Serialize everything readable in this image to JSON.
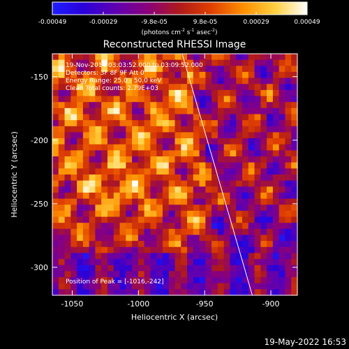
{
  "colorbar": {
    "ticks": [
      "-0.00049",
      "-0.00029",
      "-9.8e-05",
      "9.8e-05",
      "0.00029",
      "0.00049"
    ],
    "units": {
      "base": "(photons cm",
      "sup1": "-2",
      "mid1": " s",
      "sup2": "-1",
      "mid2": " asec",
      "sup3": "-2",
      "end": ")"
    },
    "range": [
      -0.00049,
      0.00049
    ],
    "colors": [
      "#1e1eff",
      "#2a00d8",
      "#6000b0",
      "#8a007a",
      "#b01a1a",
      "#e04000",
      "#ff9000",
      "#ffd040",
      "#ffffff"
    ]
  },
  "chart_data": {
    "type": "heatmap",
    "title": "Reconstructed RHESSI Image",
    "xlabel": "Heliocentric X (arcsec)",
    "ylabel": "Heliocentric Y (arcsec)",
    "xlim": [
      -1065,
      -880
    ],
    "ylim": [
      -322,
      -132
    ],
    "xticks": [
      "-1050",
      "-1000",
      "-950",
      "-900"
    ],
    "yticks": [
      "-150",
      "-200",
      "-250",
      "-300"
    ],
    "xtick_values": [
      -1050,
      -1000,
      -950,
      -900
    ],
    "ytick_values": [
      -150,
      -200,
      -250,
      -300
    ],
    "annotations": [
      "19-Nov-2014 03:03:52.000 to 03:09:52.000",
      "Detectors: 3F 8F 9F  Att 0",
      "Energy Range: 25.0 - 50.0 keV",
      "Clean     Total counts: 2.79E+03"
    ],
    "peak_label": "Position of Peak = [-1016,-242]",
    "peak": [
      -1016,
      -242
    ],
    "limb_line": [
      [
        -967,
        -132
      ],
      [
        -914,
        -322
      ]
    ],
    "grid_size": 40
  },
  "footer": {
    "timestamp": "19-May-2022 16:53"
  }
}
